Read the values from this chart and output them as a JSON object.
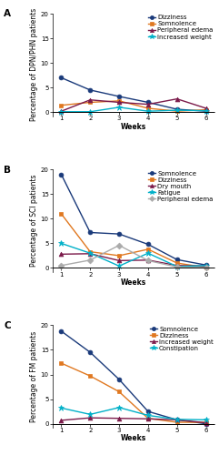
{
  "weeks": [
    1,
    2,
    3,
    4,
    5,
    6
  ],
  "panel_A": {
    "title": "A",
    "ylabel": "Percentage of DPN/PHN patients",
    "ylim": [
      -0.8,
      20
    ],
    "yticks": [
      0,
      5,
      10,
      15,
      20
    ],
    "series": [
      {
        "label": "Dizziness",
        "color": "#1a3a7a",
        "marker": "o",
        "values": [
          7.0,
          4.5,
          3.2,
          2.0,
          0.6,
          0.2
        ]
      },
      {
        "label": "Somnolence",
        "color": "#e07820",
        "marker": "s",
        "values": [
          1.4,
          2.0,
          2.3,
          0.8,
          0.2,
          0.5
        ]
      },
      {
        "label": "Peripheral edema",
        "color": "#7b1a4a",
        "marker": "^",
        "values": [
          0.2,
          2.5,
          2.0,
          1.6,
          2.7,
          0.8
        ]
      },
      {
        "label": "Increased weight",
        "color": "#00b0c8",
        "marker": "*",
        "values": [
          0.1,
          0.1,
          1.0,
          0.2,
          0.4,
          0.3
        ]
      }
    ]
  },
  "panel_B": {
    "title": "B",
    "ylabel": "Percentage of SCI patients",
    "ylim": [
      -0.8,
      20
    ],
    "yticks": [
      0,
      5,
      10,
      15,
      20
    ],
    "series": [
      {
        "label": "Somnolence",
        "color": "#1a3a7a",
        "marker": "o",
        "values": [
          19.0,
          7.2,
          6.9,
          4.8,
          1.7,
          0.6
        ]
      },
      {
        "label": "Dizziness",
        "color": "#e07820",
        "marker": "s",
        "values": [
          11.0,
          3.3,
          2.5,
          3.8,
          1.0,
          0.1
        ]
      },
      {
        "label": "Dry mouth",
        "color": "#7b1a4a",
        "marker": "^",
        "values": [
          2.8,
          2.9,
          1.5,
          1.6,
          0.5,
          0.4
        ]
      },
      {
        "label": "Fatigue",
        "color": "#00b0c8",
        "marker": "*",
        "values": [
          5.0,
          3.0,
          0.4,
          3.0,
          0.3,
          0.5
        ]
      },
      {
        "label": "Peripheral edema",
        "color": "#aaaaaa",
        "marker": "D",
        "values": [
          0.5,
          1.6,
          4.6,
          1.5,
          0.2,
          0.1
        ]
      }
    ]
  },
  "panel_C": {
    "title": "C",
    "ylabel": "Percentage of FM patients",
    "ylim": [
      -0.8,
      20
    ],
    "yticks": [
      0,
      5,
      10,
      15,
      20
    ],
    "series": [
      {
        "label": "Somnolence",
        "color": "#1a3a7a",
        "marker": "o",
        "values": [
          18.8,
          14.5,
          9.0,
          2.5,
          0.8,
          0.0
        ]
      },
      {
        "label": "Dizziness",
        "color": "#e07820",
        "marker": "s",
        "values": [
          12.3,
          9.7,
          6.5,
          1.1,
          0.3,
          0.3
        ]
      },
      {
        "label": "Increased weight",
        "color": "#7b1a4a",
        "marker": "^",
        "values": [
          0.7,
          1.2,
          1.1,
          1.0,
          0.8,
          0.2
        ]
      },
      {
        "label": "Constipation",
        "color": "#00b0c8",
        "marker": "*",
        "values": [
          3.2,
          1.9,
          3.3,
          1.7,
          0.9,
          0.8
        ]
      }
    ]
  },
  "xlabel": "Weeks",
  "linewidth": 1.0,
  "markersize": 3.5,
  "legend_fontsize": 5.0,
  "axis_label_fontsize": 5.5,
  "tick_fontsize": 5.0,
  "title_fontsize": 7.5
}
